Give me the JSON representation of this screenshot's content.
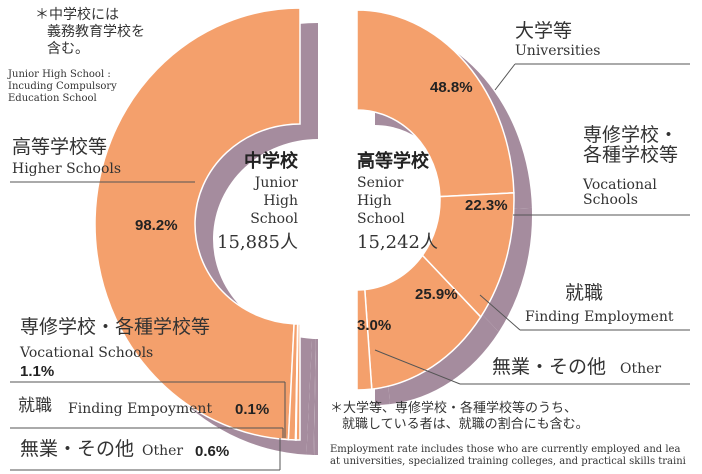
{
  "chart_data": [
    {
      "type": "pie",
      "title": "中学校",
      "subtitle_lines": [
        "Junior",
        "High",
        "School"
      ],
      "total_label": "15,885人",
      "categories": [
        "高等学校等",
        "専修学校・各種学校等",
        "就職",
        "無業・その他"
      ],
      "categories_en": [
        "Higher Schools",
        "Vocational Schools",
        "Finding Empoyment",
        "Other"
      ],
      "values": [
        98.2,
        1.1,
        0.1,
        0.6
      ],
      "value_labels": [
        "98.2%",
        "1.1%",
        "0.1%",
        "0.6%"
      ],
      "color": "#f4a06c",
      "shadow_color": "#a58c9e",
      "note_lines": [
        "＊中学校には",
        "義務教育学校を",
        "含む。"
      ],
      "note_en_lines": [
        "Junior High School :",
        "Incuding Compulsory",
        "Education School"
      ]
    },
    {
      "type": "pie",
      "title": "高等学校",
      "subtitle_lines": [
        "Senior",
        "High",
        "School"
      ],
      "total_label": "15,242人",
      "categories": [
        "大学等",
        "専修学校・各種学校等",
        "就職",
        "無業・その他"
      ],
      "categories_en": [
        "Universities",
        "Vocational Schools",
        "Finding Employment",
        "Other"
      ],
      "values": [
        48.8,
        22.3,
        25.9,
        3.0
      ],
      "value_labels": [
        "48.8%",
        "22.3%",
        "25.9%",
        "3.0%"
      ],
      "color": "#f4a06c",
      "shadow_color": "#a58c9e",
      "note_lines": [
        "＊大学等、専修学校・各種学校等のうち、",
        "就職している者は、就職の割合にも含む。"
      ],
      "note_en_lines": [
        "Employment rate includes those who are currently employed and lea",
        "at universities, specialized training colleges, and practical skills traini"
      ]
    }
  ]
}
